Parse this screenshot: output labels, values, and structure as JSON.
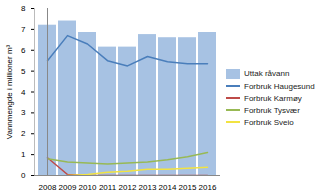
{
  "chart_data": {
    "type": "bar",
    "y_label": "Vannmengde i millioner m³",
    "categories": [
      "2008",
      "2009",
      "2010",
      "2011",
      "2012",
      "2013",
      "2014",
      "2015",
      "2016"
    ],
    "series": [
      {
        "name": "Uttak råvann",
        "type": "bar",
        "color": "#a7c2e3",
        "values": [
          7.2,
          7.4,
          6.85,
          6.15,
          6.15,
          6.75,
          6.6,
          6.6,
          6.85
        ]
      },
      {
        "name": "Forbruk Haugesund",
        "type": "line",
        "color": "#4a7ebb",
        "values": [
          5.5,
          6.7,
          6.3,
          5.5,
          5.25,
          5.7,
          5.45,
          5.35,
          5.35
        ]
      },
      {
        "name": "Forbruk Karmøy",
        "type": "line",
        "color": "#be4b48",
        "values": [
          0.85,
          0.05,
          0,
          0,
          0,
          0,
          0,
          0,
          0
        ]
      },
      {
        "name": "Forbruk Tysvær",
        "type": "line",
        "color": "#98b954",
        "values": [
          0.8,
          0.65,
          0.6,
          0.55,
          0.6,
          0.65,
          0.75,
          0.9,
          1.1
        ]
      },
      {
        "name": "Forbruk Sveio",
        "type": "line",
        "color": "#f2e341",
        "values": [
          null,
          0,
          0.05,
          0.15,
          0.2,
          0.3,
          0.3,
          0.35,
          0.4
        ]
      }
    ],
    "ylim": [
      0,
      8
    ],
    "yticks": [
      0,
      1,
      2,
      3,
      4,
      5,
      6,
      7,
      8
    ],
    "grid": false,
    "legend": "right"
  }
}
